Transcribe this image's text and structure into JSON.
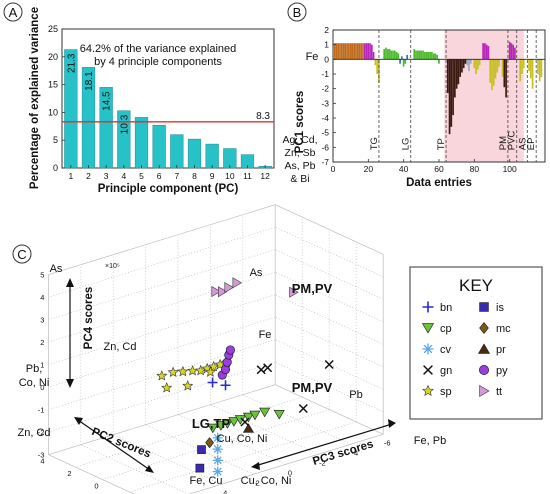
{
  "chart_data": [
    {
      "type": "bar",
      "panel_label": "A",
      "title": "",
      "annotation": "64.2% of the variance explained by 4 principle components",
      "annotation_lines": [
        "64.2% of the variance explained",
        "by 4 principle components"
      ],
      "xlabel": "Principle component (PC)",
      "ylabel": "Percentage of explained variance",
      "categories": [
        "1",
        "2",
        "3",
        "4",
        "5",
        "6",
        "7",
        "8",
        "9",
        "10",
        "11",
        "12"
      ],
      "values": [
        21.3,
        18.1,
        14.5,
        10.3,
        9.1,
        7.7,
        6.0,
        5.2,
        4.3,
        3.5,
        2.4,
        0.3
      ],
      "data_labels": [
        "21.3",
        "18.1",
        "14.5",
        "10.3",
        "",
        "",
        "",
        "",
        "",
        "",
        "",
        ""
      ],
      "ylim": [
        0,
        25
      ],
      "yticks": [
        "0",
        "5",
        "10",
        "15",
        "20",
        "25"
      ],
      "reference_line": {
        "value": 8.3,
        "label": "8.3",
        "color": "#e03030"
      },
      "side_note": [
        "Ag, Cd,",
        "Zn, Sb",
        "As, Pb",
        "& Bi"
      ],
      "bar_color": "#26c2c8"
    },
    {
      "type": "bar",
      "panel_label": "B",
      "xlabel": "Data entries",
      "ylabel": "PC1 scores",
      "top_label": "Fe",
      "xlim": [
        0,
        120
      ],
      "ylim": [
        -7,
        2
      ],
      "xticks": [
        "0",
        "20",
        "40",
        "60",
        "80",
        "100"
      ],
      "yticks": [
        "-7",
        "-6",
        "-5",
        "-4",
        "-3",
        "-2",
        "-1",
        "0",
        "1",
        "2"
      ],
      "shaded_region": [
        63,
        108
      ],
      "shade_color": "#f9d6dc",
      "dividers": [
        {
          "x": 26,
          "label": "TG"
        },
        {
          "x": 44,
          "label": "LG"
        },
        {
          "x": 64,
          "label": "TP"
        },
        {
          "x": 99,
          "label": "PM"
        },
        {
          "x": 104,
          "label": "PVC"
        },
        {
          "x": 110,
          "label": "AS"
        },
        {
          "x": 115,
          "label": "EP"
        }
      ],
      "bars": [
        {
          "x": 1,
          "v": 1.1,
          "c": "#c06a1c"
        },
        {
          "x": 2,
          "v": 1.1,
          "c": "#c06a1c"
        },
        {
          "x": 3,
          "v": 1.1,
          "c": "#c06a1c"
        },
        {
          "x": 4,
          "v": 1.1,
          "c": "#c06a1c"
        },
        {
          "x": 5,
          "v": 1.1,
          "c": "#c06a1c"
        },
        {
          "x": 6,
          "v": 1.1,
          "c": "#c06a1c"
        },
        {
          "x": 7,
          "v": 1.1,
          "c": "#c06a1c"
        },
        {
          "x": 8,
          "v": 1.1,
          "c": "#c06a1c"
        },
        {
          "x": 9,
          "v": 1.1,
          "c": "#c06a1c"
        },
        {
          "x": 10,
          "v": 1.1,
          "c": "#c06a1c"
        },
        {
          "x": 11,
          "v": 1.1,
          "c": "#c06a1c"
        },
        {
          "x": 12,
          "v": 1.1,
          "c": "#c06a1c"
        },
        {
          "x": 13,
          "v": 1.1,
          "c": "#c06a1c"
        },
        {
          "x": 14,
          "v": 1.1,
          "c": "#c06a1c"
        },
        {
          "x": 15,
          "v": 1.1,
          "c": "#c06a1c"
        },
        {
          "x": 16,
          "v": 1.1,
          "c": "#c06a1c"
        },
        {
          "x": 17,
          "v": 1.1,
          "c": "#c06a1c"
        },
        {
          "x": 18,
          "v": 1.1,
          "c": "#b826b8"
        },
        {
          "x": 19,
          "v": 1.1,
          "c": "#b826b8"
        },
        {
          "x": 20,
          "v": 1.1,
          "c": "#b826b8"
        },
        {
          "x": 21,
          "v": 1.1,
          "c": "#b826b8"
        },
        {
          "x": 22,
          "v": 1.0,
          "c": "#b826b8"
        },
        {
          "x": 23,
          "v": 0.5,
          "c": "#b826b8"
        },
        {
          "x": 24,
          "v": -0.4,
          "c": "#c8c020"
        },
        {
          "x": 25,
          "v": -1.0,
          "c": "#c8c020"
        },
        {
          "x": 26,
          "v": -1.6,
          "c": "#c8c020"
        },
        {
          "x": 29,
          "v": 0.7,
          "c": "#4cbb2c"
        },
        {
          "x": 30,
          "v": 0.8,
          "c": "#4cbb2c"
        },
        {
          "x": 31,
          "v": 0.7,
          "c": "#4cbb2c"
        },
        {
          "x": 32,
          "v": 0.7,
          "c": "#4cbb2c"
        },
        {
          "x": 33,
          "v": 0.6,
          "c": "#4cbb2c"
        },
        {
          "x": 34,
          "v": 0.6,
          "c": "#4cbb2c"
        },
        {
          "x": 35,
          "v": 0.6,
          "c": "#4cbb2c"
        },
        {
          "x": 36,
          "v": 0.5,
          "c": "#4cbb2c"
        },
        {
          "x": 37,
          "v": 0.4,
          "c": "#4cbb2c"
        },
        {
          "x": 38,
          "v": -0.3,
          "c": "#2d6fd0"
        },
        {
          "x": 39,
          "v": 0.2,
          "c": "#2d6fd0"
        },
        {
          "x": 40,
          "v": -0.5,
          "c": "#4cbb2c"
        },
        {
          "x": 41,
          "v": -0.3,
          "c": "#4cbb2c"
        },
        {
          "x": 42,
          "v": 0.3,
          "c": "#2d6fd0"
        },
        {
          "x": 46,
          "v": 0.7,
          "c": "#4cbb2c"
        },
        {
          "x": 47,
          "v": 0.6,
          "c": "#4cbb2c"
        },
        {
          "x": 48,
          "v": 0.6,
          "c": "#4cbb2c"
        },
        {
          "x": 49,
          "v": 0.6,
          "c": "#4cbb2c"
        },
        {
          "x": 50,
          "v": 0.6,
          "c": "#4cbb2c"
        },
        {
          "x": 51,
          "v": 0.6,
          "c": "#4cbb2c"
        },
        {
          "x": 52,
          "v": 0.5,
          "c": "#4cbb2c"
        },
        {
          "x": 53,
          "v": 0.5,
          "c": "#4cbb2c"
        },
        {
          "x": 54,
          "v": 0.5,
          "c": "#4cbb2c"
        },
        {
          "x": 55,
          "v": 0.5,
          "c": "#4cbb2c"
        },
        {
          "x": 56,
          "v": 0.5,
          "c": "#4cbb2c"
        },
        {
          "x": 57,
          "v": 0.4,
          "c": "#4cbb2c"
        },
        {
          "x": 58,
          "v": 0.4,
          "c": "#4cbb2c"
        },
        {
          "x": 59,
          "v": 0.3,
          "c": "#4cbb2c"
        },
        {
          "x": 60,
          "v": -0.3,
          "c": "#4cbb2c"
        },
        {
          "x": 65,
          "v": -2.3,
          "c": "#3a1a10"
        },
        {
          "x": 66,
          "v": -5.1,
          "c": "#3a1a10"
        },
        {
          "x": 67,
          "v": -4.6,
          "c": "#3a1a10"
        },
        {
          "x": 68,
          "v": -3.8,
          "c": "#3a1a10"
        },
        {
          "x": 69,
          "v": -2.6,
          "c": "#3a1a10"
        },
        {
          "x": 70,
          "v": -2.0,
          "c": "#3a1a10"
        },
        {
          "x": 71,
          "v": -1.7,
          "c": "#3a1a10"
        },
        {
          "x": 72,
          "v": -1.2,
          "c": "#3a1a10"
        },
        {
          "x": 73,
          "v": -0.9,
          "c": "#3a1a10"
        },
        {
          "x": 74,
          "v": -0.6,
          "c": "#3a1a10"
        },
        {
          "x": 75,
          "v": -0.3,
          "c": "#3a1a10"
        },
        {
          "x": 76,
          "v": -0.4,
          "c": "#9aa8c8"
        },
        {
          "x": 77,
          "v": -0.8,
          "c": "#9aa8c8"
        },
        {
          "x": 78,
          "v": -0.3,
          "c": "#9aa8c8"
        },
        {
          "x": 80,
          "v": -0.6,
          "c": "#c8c020"
        },
        {
          "x": 81,
          "v": -1.0,
          "c": "#c8c020"
        },
        {
          "x": 82,
          "v": -0.7,
          "c": "#c8c020"
        },
        {
          "x": 83,
          "v": -0.4,
          "c": "#c8c020"
        },
        {
          "x": 85,
          "v": 1.1,
          "c": "#b826b8"
        },
        {
          "x": 86,
          "v": 1.1,
          "c": "#b826b8"
        },
        {
          "x": 87,
          "v": 1.0,
          "c": "#b826b8"
        },
        {
          "x": 88,
          "v": 0.9,
          "c": "#b826b8"
        },
        {
          "x": 89,
          "v": -1.6,
          "c": "#c8c020"
        },
        {
          "x": 90,
          "v": -2.1,
          "c": "#c8c020"
        },
        {
          "x": 91,
          "v": -1.8,
          "c": "#c8c020"
        },
        {
          "x": 92,
          "v": -1.3,
          "c": "#c8c020"
        },
        {
          "x": 93,
          "v": -0.9,
          "c": "#c8c020"
        },
        {
          "x": 94,
          "v": -0.5,
          "c": "#c8c020"
        },
        {
          "x": 96,
          "v": -1.2,
          "c": "#c8c020"
        },
        {
          "x": 97,
          "v": -1.9,
          "c": "#3a1a10"
        },
        {
          "x": 98,
          "v": -2.6,
          "c": "#3a1a10"
        },
        {
          "x": 100,
          "v": 1.2,
          "c": "#b826b8"
        },
        {
          "x": 101,
          "v": 1.1,
          "c": "#b826b8"
        },
        {
          "x": 102,
          "v": 1.0,
          "c": "#b826b8"
        },
        {
          "x": 103,
          "v": 0.8,
          "c": "#b826b8"
        },
        {
          "x": 106,
          "v": -1.5,
          "c": "#c8c020"
        },
        {
          "x": 107,
          "v": -1.0,
          "c": "#c8c020"
        },
        {
          "x": 108,
          "v": -0.6,
          "c": "#c8c020"
        },
        {
          "x": 111,
          "v": -0.8,
          "c": "#c8c020"
        },
        {
          "x": 112,
          "v": -1.3,
          "c": "#c8c020"
        },
        {
          "x": 113,
          "v": -2.0,
          "c": "#c8c020"
        },
        {
          "x": 116,
          "v": -1.0,
          "c": "#c8c020"
        },
        {
          "x": 117,
          "v": -1.5,
          "c": "#c8c020"
        },
        {
          "x": 118,
          "v": -1.2,
          "c": "#c8c020"
        }
      ]
    },
    {
      "type": "scatter",
      "panel_label": "C",
      "exponent_label": "×10⁵",
      "axes": {
        "pc4": {
          "label": "PC4 scores",
          "range": [
            -3,
            5
          ],
          "ticks": [
            "-3",
            "-2",
            "-1",
            "0",
            "1",
            "2",
            "3",
            "4",
            "5"
          ]
        },
        "pc2": {
          "label": "PC2 scores",
          "range": [
            -4,
            4
          ],
          "ticks": [
            "-4",
            "-2",
            "0",
            "2",
            "4"
          ]
        },
        "pc3": {
          "label": "PC3 scores",
          "range": [
            -6,
            8
          ],
          "ticks": [
            "-6",
            "-4",
            "-2",
            "0",
            "2",
            "4",
            "6",
            "8"
          ]
        }
      },
      "element_annotations": [
        "As",
        "Pb, Co, Ni",
        "Zn, Cd",
        "Zn, Cd",
        "Fe, Cu",
        "Cu, Co, Ni",
        "Cu, Co, Ni",
        "Fe, Pb",
        "As",
        "Fe",
        "Pb"
      ],
      "group_labels": [
        "PM,PV",
        "PM,PV",
        "LG,TP"
      ],
      "legend": {
        "title": "KEY",
        "placement": "right",
        "entries": [
          {
            "name": "bn",
            "marker": "plus",
            "color": "#2a2ad0"
          },
          {
            "name": "is",
            "marker": "square",
            "color": "#3b2bb0"
          },
          {
            "name": "cp",
            "marker": "triangle-down",
            "color": "#6cc23c"
          },
          {
            "name": "mc",
            "marker": "diamond",
            "color": "#7a5a1c"
          },
          {
            "name": "cv",
            "marker": "asterisk",
            "color": "#5aa8e8"
          },
          {
            "name": "pr",
            "marker": "triangle-up",
            "color": "#4a2a14"
          },
          {
            "name": "gn",
            "marker": "cross",
            "color": "#111111"
          },
          {
            "name": "py",
            "marker": "circle",
            "color": "#9b3ee0"
          },
          {
            "name": "sp",
            "marker": "star",
            "color": "#d6d622"
          },
          {
            "name": "tt",
            "marker": "triangle-right",
            "color": "#d49ad8"
          }
        ]
      },
      "points": [
        {
          "s": "tt",
          "pc2": 0,
          "pc3": 1.0,
          "pc4": 3.8
        },
        {
          "s": "tt",
          "pc2": 0,
          "pc3": 0.6,
          "pc4": 3.7
        },
        {
          "s": "tt",
          "pc2": 0,
          "pc3": 0.2,
          "pc4": 3.8
        },
        {
          "s": "tt",
          "pc2": 0,
          "pc3": -0.3,
          "pc4": 3.9
        },
        {
          "s": "tt",
          "pc2": 0,
          "pc3": -3.8,
          "pc4": 2.7
        },
        {
          "s": "sp",
          "pc2": 2.8,
          "pc3": 2.0,
          "pc4": -0.5
        },
        {
          "s": "sp",
          "pc2": 2.8,
          "pc3": 1.3,
          "pc4": -0.5
        },
        {
          "s": "sp",
          "pc2": 2.8,
          "pc3": 0.7,
          "pc4": -0.6
        },
        {
          "s": "sp",
          "pc2": 2.8,
          "pc3": 0.1,
          "pc4": -0.7
        },
        {
          "s": "sp",
          "pc2": 2.8,
          "pc3": -0.4,
          "pc4": -0.8
        },
        {
          "s": "sp",
          "pc2": 2.8,
          "pc3": -0.8,
          "pc4": -0.8
        },
        {
          "s": "sp",
          "pc2": 2.8,
          "pc3": -1.2,
          "pc4": -0.8
        },
        {
          "s": "sp",
          "pc2": 2.8,
          "pc3": -1.6,
          "pc4": -0.8
        },
        {
          "s": "sp",
          "pc2": 2.8,
          "pc3": -2.0,
          "pc4": -0.8
        },
        {
          "s": "sp",
          "pc2": 2.8,
          "pc3": 1.7,
          "pc4": -1.1
        },
        {
          "s": "sp",
          "pc2": 2.8,
          "pc3": 0.4,
          "pc4": -1.3
        },
        {
          "s": "sp",
          "pc2": 2.8,
          "pc3": -1.0,
          "pc4": -1.0
        },
        {
          "s": "py",
          "pc2": 0,
          "pc3": 0.6,
          "pc4": 0.0
        },
        {
          "s": "py",
          "pc2": 0,
          "pc3": 0.4,
          "pc4": 0.2
        },
        {
          "s": "py",
          "pc2": 0,
          "pc3": 0.3,
          "pc4": 0.5
        },
        {
          "s": "py",
          "pc2": 0,
          "pc3": 0.2,
          "pc4": 0.8
        },
        {
          "s": "py",
          "pc2": 0,
          "pc3": 0.1,
          "pc4": 1.0
        },
        {
          "s": "cp",
          "pc2": -0.5,
          "pc3": 1.6,
          "pc4": -2.0
        },
        {
          "s": "cp",
          "pc2": -0.5,
          "pc3": 1.1,
          "pc4": -2.0
        },
        {
          "s": "cp",
          "pc2": -0.5,
          "pc3": 0.7,
          "pc4": -2.0
        },
        {
          "s": "cp",
          "pc2": -0.5,
          "pc3": 0.3,
          "pc4": -2.0
        },
        {
          "s": "cp",
          "pc2": -0.5,
          "pc3": -0.1,
          "pc4": -2.0
        },
        {
          "s": "cp",
          "pc2": -0.5,
          "pc3": -0.6,
          "pc4": -2.0
        },
        {
          "s": "cp",
          "pc2": -0.5,
          "pc3": -1.0,
          "pc4": -2.0
        },
        {
          "s": "cp",
          "pc2": -0.5,
          "pc3": -1.6,
          "pc4": -2.0
        },
        {
          "s": "cp",
          "pc2": -0.5,
          "pc3": -2.5,
          "pc4": -2.3
        },
        {
          "s": "cv",
          "pc2": -0.5,
          "pc3": 1.3,
          "pc4": -2.5
        },
        {
          "s": "cv",
          "pc2": -0.5,
          "pc3": 1.3,
          "pc4": -3.0
        },
        {
          "s": "cv",
          "pc2": -0.5,
          "pc3": 1.3,
          "pc4": -3.5
        },
        {
          "s": "cv",
          "pc2": -0.5,
          "pc3": 1.3,
          "pc4": -4.0
        },
        {
          "s": "bn",
          "pc2": 0,
          "pc3": 1.2,
          "pc4": -0.2
        },
        {
          "s": "bn",
          "pc2": 0,
          "pc3": 0.4,
          "pc4": -0.5
        },
        {
          "s": "gn",
          "pc2": 0,
          "pc3": -1.8,
          "pc4": -0.3
        },
        {
          "s": "gn",
          "pc2": 0,
          "pc3": -2.2,
          "pc4": -0.3
        },
        {
          "s": "gn",
          "pc2": 0,
          "pc3": -6.0,
          "pc4": -1.0
        },
        {
          "s": "gn",
          "pc2": 0,
          "pc3": -4.4,
          "pc4": -2.6
        },
        {
          "s": "gn",
          "pc2": 0,
          "pc3": -0.8,
          "pc4": -2.4
        },
        {
          "s": "is",
          "pc2": -0.5,
          "pc3": 2.4,
          "pc4": -3.6
        },
        {
          "s": "is",
          "pc2": -0.5,
          "pc3": 3.2,
          "pc4": -4.8
        },
        {
          "s": "is",
          "pc2": -0.5,
          "pc3": 2.3,
          "pc4": -2.8
        },
        {
          "s": "mc",
          "pc2": -0.5,
          "pc3": 1.8,
          "pc4": -2.6
        },
        {
          "s": "pr",
          "pc2": -0.5,
          "pc3": -0.6,
          "pc4": -2.5
        }
      ]
    }
  ]
}
